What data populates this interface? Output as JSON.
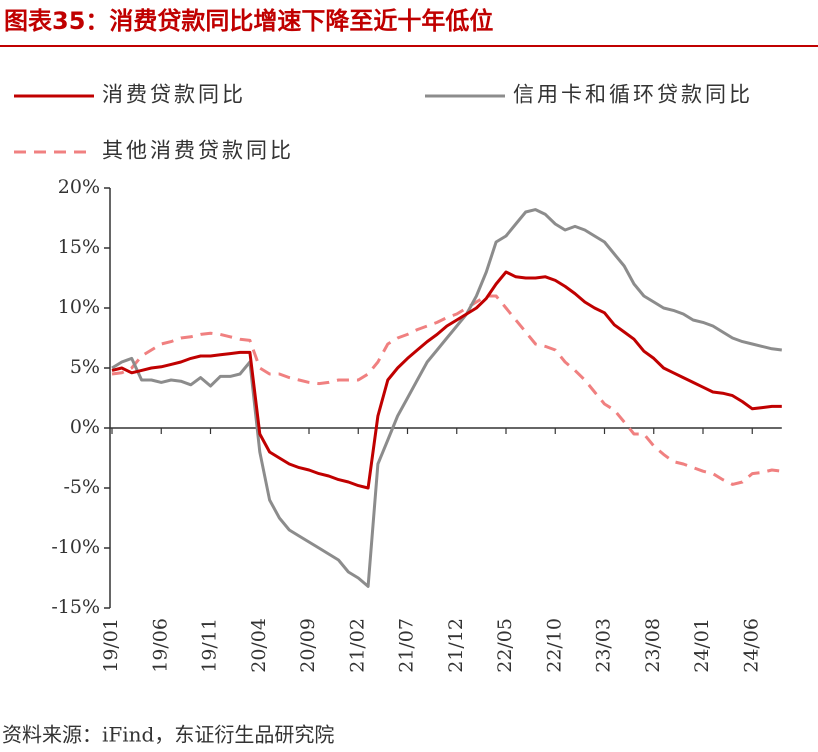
{
  "chart_data": {
    "type": "line",
    "title": "图表35：消费贷款同比增速下降至近十年低位",
    "source": "资料来源：iFind，东证衍生品研究院",
    "categories": [
      "19/01",
      null,
      null,
      null,
      null,
      "19/06",
      null,
      null,
      null,
      null,
      "19/11",
      null,
      null,
      null,
      null,
      "20/04",
      null,
      null,
      null,
      null,
      "20/09",
      null,
      null,
      null,
      null,
      "21/02",
      null,
      null,
      null,
      null,
      "21/07",
      null,
      null,
      null,
      null,
      "21/12",
      null,
      null,
      null,
      null,
      "22/05",
      null,
      null,
      null,
      null,
      "22/10",
      null,
      null,
      null,
      null,
      "23/03",
      null,
      null,
      null,
      null,
      "23/08",
      null,
      null,
      null,
      null,
      "24/01",
      null,
      null,
      null,
      null,
      "24/06",
      null,
      null,
      null
    ],
    "series": [
      {
        "name": "消费贷款同比",
        "color": "#c00000",
        "dashed": false,
        "values": [
          4.8,
          5.0,
          4.6,
          4.8,
          5.0,
          5.1,
          5.3,
          5.5,
          5.8,
          6.0,
          6.0,
          6.1,
          6.2,
          6.3,
          6.3,
          -0.5,
          -2.0,
          -2.5,
          -3.0,
          -3.3,
          -3.5,
          -3.8,
          -4.0,
          -4.3,
          -4.5,
          -4.8,
          -5.0,
          1.0,
          4.0,
          5.0,
          5.8,
          6.5,
          7.2,
          7.8,
          8.5,
          9.0,
          9.5,
          10.0,
          10.8,
          12.0,
          13.0,
          12.6,
          12.5,
          12.5,
          12.6,
          12.3,
          11.8,
          11.2,
          10.5,
          10.0,
          9.6,
          8.6,
          8.0,
          7.4,
          6.4,
          5.8,
          5.0,
          4.6,
          4.2,
          3.8,
          3.4,
          3.0,
          2.9,
          2.7,
          2.2,
          1.6,
          1.7,
          1.8,
          1.8
        ]
      },
      {
        "name": "信用卡和循环贷款同比",
        "color": "#8c8c8c",
        "dashed": false,
        "values": [
          5.0,
          5.5,
          5.8,
          4.0,
          4.0,
          3.8,
          4.0,
          3.9,
          3.6,
          4.2,
          3.5,
          4.3,
          4.3,
          4.5,
          5.5,
          -2.0,
          -6.0,
          -7.5,
          -8.5,
          -9.0,
          -9.5,
          -10.0,
          -10.5,
          -11.0,
          -12.0,
          -12.5,
          -13.2,
          -3.0,
          -1.0,
          1.0,
          2.5,
          4.0,
          5.5,
          6.5,
          7.5,
          8.5,
          9.5,
          11.0,
          13.0,
          15.5,
          16.0,
          17.0,
          18.0,
          18.2,
          17.8,
          17.0,
          16.5,
          16.8,
          16.5,
          16.0,
          15.5,
          14.5,
          13.5,
          12.0,
          11.0,
          10.5,
          10.0,
          9.8,
          9.5,
          9.0,
          8.8,
          8.5,
          8.0,
          7.5,
          7.2,
          7.0,
          6.8,
          6.6,
          6.5
        ]
      },
      {
        "name": "其他消费贷款同比",
        "color": "#f08080",
        "dashed": true,
        "values": [
          4.5,
          4.6,
          5.0,
          6.0,
          6.5,
          7.0,
          7.2,
          7.5,
          7.6,
          7.8,
          7.9,
          7.8,
          7.6,
          7.4,
          7.3,
          5.0,
          4.5,
          4.5,
          4.2,
          4.0,
          3.8,
          3.7,
          3.8,
          4.0,
          4.0,
          4.0,
          4.5,
          5.5,
          7.0,
          7.5,
          7.8,
          8.2,
          8.5,
          8.8,
          9.2,
          9.5,
          10.0,
          10.5,
          11.0,
          11.0,
          10.0,
          9.0,
          8.0,
          7.0,
          6.8,
          6.5,
          5.5,
          4.8,
          4.0,
          3.0,
          2.0,
          1.5,
          0.5,
          -0.5,
          -0.5,
          -1.5,
          -2.2,
          -2.8,
          -3.0,
          -3.3,
          -3.6,
          -3.8,
          -4.3,
          -4.7,
          -4.5,
          -3.8,
          -3.7,
          -3.5,
          -3.6
        ]
      }
    ],
    "ylim": [
      -15,
      20
    ],
    "yticks": [
      {
        "value": -15,
        "label": "-15%"
      },
      {
        "value": -10,
        "label": "-10%"
      },
      {
        "value": -5,
        "label": "-5%"
      },
      {
        "value": 0,
        "label": "0%"
      },
      {
        "value": 5,
        "label": "5%"
      },
      {
        "value": 10,
        "label": "10%"
      },
      {
        "value": 15,
        "label": "15%"
      },
      {
        "value": 20,
        "label": "20%"
      }
    ],
    "grid": false
  }
}
